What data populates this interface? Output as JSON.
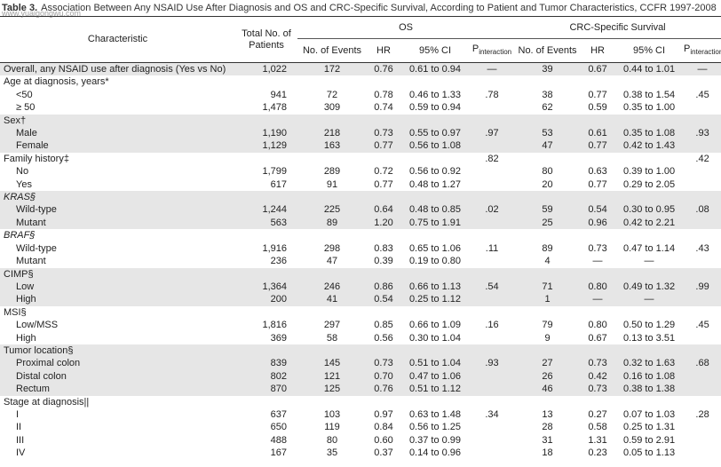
{
  "watermark": "www.yuaigongwu.com",
  "title": {
    "label": "Table 3.",
    "text": "Association Between Any NSAID Use After Diagnosis and OS and CRC-Specific Survival, According to Patient and Tumor Characteristics, CCFR 1997-2008"
  },
  "header": {
    "characteristic": "Characteristic",
    "total": "Total No. of Patients",
    "groups": [
      {
        "label": "OS",
        "columns": [
          "No. of Events",
          "HR",
          "95% CI",
          {
            "main": "P",
            "sub": "interaction"
          }
        ]
      },
      {
        "label": "CRC-Specific Survival",
        "columns": [
          "No. of Events",
          "HR",
          "95% CI",
          {
            "main": "P",
            "sub": "interaction"
          }
        ]
      }
    ]
  },
  "groups": [
    {
      "label": "Overall, any NSAID use after diagnosis (Yes vs No)",
      "cells": [
        "1,022",
        "172",
        "0.76",
        "0.61 to 0.94",
        "—",
        "39",
        "0.67",
        "0.44 to 1.01",
        "—"
      ],
      "rows": []
    },
    {
      "label": "Age at diagnosis, years*",
      "cells": null,
      "rows": [
        {
          "label": "<50",
          "cells": [
            "941",
            "72",
            "0.78",
            "0.46 to 1.33",
            ".78",
            "38",
            "0.77",
            "0.38 to 1.54",
            ".45"
          ]
        },
        {
          "label": "≥ 50",
          "cells": [
            "1,478",
            "309",
            "0.74",
            "0.59 to 0.94",
            null,
            "62",
            "0.59",
            "0.35 to 1.00",
            null
          ]
        }
      ]
    },
    {
      "label": "Sex†",
      "cells": null,
      "rows": [
        {
          "label": "Male",
          "cells": [
            "1,190",
            "218",
            "0.73",
            "0.55 to 0.97",
            ".97",
            "53",
            "0.61",
            "0.35 to 1.08",
            ".93"
          ]
        },
        {
          "label": "Female",
          "cells": [
            "1,129",
            "163",
            "0.77",
            "0.56 to 1.08",
            null,
            "47",
            "0.77",
            "0.42 to 1.43",
            null
          ]
        }
      ]
    },
    {
      "label": "Family history‡",
      "cells": [
        null,
        null,
        null,
        null,
        ".82",
        null,
        null,
        null,
        ".42"
      ],
      "rows": [
        {
          "label": "No",
          "cells": [
            "1,799",
            "289",
            "0.72",
            "0.56 to 0.92",
            null,
            "80",
            "0.63",
            "0.39 to 1.00",
            null
          ]
        },
        {
          "label": "Yes",
          "cells": [
            "617",
            "91",
            "0.77",
            "0.48 to 1.27",
            null,
            "20",
            "0.77",
            "0.29 to 2.05",
            null
          ]
        }
      ]
    },
    {
      "label": "KRAS§",
      "italic": true,
      "cells": null,
      "rows": [
        {
          "label": "Wild-type",
          "cells": [
            "1,244",
            "225",
            "0.64",
            "0.48 to 0.85",
            ".02",
            "59",
            "0.54",
            "0.30 to 0.95",
            ".08"
          ]
        },
        {
          "label": "Mutant",
          "cells": [
            "563",
            "89",
            "1.20",
            "0.75 to 1.91",
            null,
            "25",
            "0.96",
            "0.42 to 2.21",
            null
          ]
        }
      ]
    },
    {
      "label": "BRAF§",
      "italic": true,
      "cells": null,
      "rows": [
        {
          "label": "Wild-type",
          "cells": [
            "1,916",
            "298",
            "0.83",
            "0.65 to 1.06",
            ".11",
            "89",
            "0.73",
            "0.47 to 1.14",
            ".43"
          ]
        },
        {
          "label": "Mutant",
          "cells": [
            "236",
            "47",
            "0.39",
            "0.19 to 0.80",
            null,
            "4",
            "—",
            "—",
            null
          ]
        }
      ]
    },
    {
      "label": "CIMP§",
      "cells": null,
      "rows": [
        {
          "label": "Low",
          "cells": [
            "1,364",
            "246",
            "0.86",
            "0.66 to 1.13",
            ".54",
            "71",
            "0.80",
            "0.49 to 1.32",
            ".99"
          ]
        },
        {
          "label": "High",
          "cells": [
            "200",
            "41",
            "0.54",
            "0.25 to 1.12",
            null,
            "1",
            "—",
            "—",
            null
          ]
        }
      ]
    },
    {
      "label": "MSI§",
      "cells": null,
      "rows": [
        {
          "label": "Low/MSS",
          "cells": [
            "1,816",
            "297",
            "0.85",
            "0.66 to 1.09",
            ".16",
            "79",
            "0.80",
            "0.50 to 1.29",
            ".45"
          ]
        },
        {
          "label": "High",
          "cells": [
            "369",
            "58",
            "0.56",
            "0.30 to 1.04",
            null,
            "9",
            "0.67",
            "0.13 to 3.51",
            null
          ]
        }
      ]
    },
    {
      "label": "Tumor location§",
      "cells": null,
      "rows": [
        {
          "label": "Proximal colon",
          "cells": [
            "839",
            "145",
            "0.73",
            "0.51 to 1.04",
            ".93",
            "27",
            "0.73",
            "0.32 to 1.63",
            ".68"
          ]
        },
        {
          "label": "Distal colon",
          "cells": [
            "802",
            "121",
            "0.70",
            "0.47 to 1.06",
            null,
            "26",
            "0.42",
            "0.16 to 1.08",
            null
          ]
        },
        {
          "label": "Rectum",
          "cells": [
            "870",
            "125",
            "0.76",
            "0.51 to 1.12",
            null,
            "46",
            "0.73",
            "0.38 to 1.38",
            null
          ]
        }
      ]
    },
    {
      "label": "Stage at diagnosis||",
      "cells": null,
      "rows": [
        {
          "label": "I",
          "cells": [
            "637",
            "103",
            "0.97",
            "0.63 to 1.48",
            ".34",
            "13",
            "0.27",
            "0.07 to 1.03",
            ".28"
          ]
        },
        {
          "label": "II",
          "cells": [
            "650",
            "119",
            "0.84",
            "0.56 to 1.25",
            null,
            "28",
            "0.58",
            "0.25 to 1.31",
            null
          ]
        },
        {
          "label": "III",
          "cells": [
            "488",
            "80",
            "0.60",
            "0.37 to 0.99",
            null,
            "31",
            "1.31",
            "0.59 to 2.91",
            null
          ]
        },
        {
          "label": "IV",
          "cells": [
            "167",
            "35",
            "0.37",
            "0.14 to 0.96",
            null,
            "18",
            "0.23",
            "0.05 to 1.13",
            null
          ]
        }
      ]
    }
  ]
}
